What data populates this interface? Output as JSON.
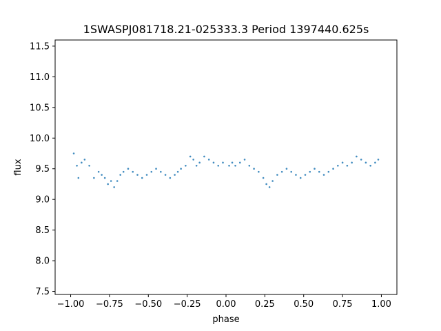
{
  "chart_data": {
    "type": "scatter",
    "title": "1SWASPJ081718.21-025333.3 Period 1397440.625s",
    "xlabel": "phase",
    "ylabel": "flux",
    "xlim": [
      -1.1,
      1.1
    ],
    "ylim": [
      7.45,
      11.6
    ],
    "xticks": [
      -1.0,
      -0.75,
      -0.5,
      -0.25,
      0.0,
      0.25,
      0.5,
      0.75,
      1.0
    ],
    "xtick_labels": [
      "−1.00",
      "−0.75",
      "−0.50",
      "−0.25",
      "0.00",
      "0.25",
      "0.50",
      "0.75",
      "1.00"
    ],
    "yticks": [
      7.5,
      8.0,
      8.5,
      9.0,
      9.5,
      10.0,
      10.5,
      11.0,
      11.5
    ],
    "ytick_labels": [
      "7.5",
      "8.0",
      "8.5",
      "9.0",
      "9.5",
      "10.0",
      "10.5",
      "11.0",
      "11.5"
    ],
    "grid": false,
    "legend": "none",
    "marker_color": "#1f77b4",
    "series": [
      {
        "x": [
          -0.98,
          -0.96,
          -0.95,
          -0.93,
          -0.91,
          -0.88,
          -0.85,
          -0.82,
          -0.8,
          -0.78,
          -0.76,
          -0.74,
          -0.72,
          -0.7,
          -0.68,
          -0.66,
          -0.63,
          -0.6,
          -0.57,
          -0.54,
          -0.51,
          -0.48,
          -0.45,
          -0.42,
          -0.39,
          -0.36,
          -0.33,
          -0.31,
          -0.29,
          -0.26,
          -0.23,
          -0.21,
          -0.19,
          -0.17,
          -0.14,
          -0.11,
          -0.08,
          -0.05,
          -0.02,
          0.02,
          0.04,
          0.06,
          0.09,
          0.12,
          0.15,
          0.18,
          0.21,
          0.24,
          0.26,
          0.28,
          0.3,
          0.33,
          0.36,
          0.39,
          0.42,
          0.45,
          0.48,
          0.51,
          0.54,
          0.57,
          0.6,
          0.63,
          0.66,
          0.69,
          0.72,
          0.75,
          0.78,
          0.81,
          0.84,
          0.87,
          0.9,
          0.93,
          0.96,
          0.98
        ],
        "y": [
          9.75,
          9.55,
          9.35,
          9.6,
          9.65,
          9.55,
          9.35,
          9.45,
          9.4,
          9.35,
          9.25,
          9.3,
          9.2,
          9.3,
          9.4,
          9.45,
          9.5,
          9.45,
          9.4,
          9.35,
          9.4,
          9.45,
          9.5,
          9.45,
          9.4,
          9.35,
          9.4,
          9.45,
          9.5,
          9.55,
          9.7,
          9.65,
          9.55,
          9.6,
          9.7,
          9.65,
          9.6,
          9.55,
          9.6,
          9.55,
          9.6,
          9.55,
          9.6,
          9.65,
          9.55,
          9.5,
          9.45,
          9.35,
          9.25,
          9.2,
          9.3,
          9.4,
          9.45,
          9.5,
          9.45,
          9.4,
          9.35,
          9.4,
          9.45,
          9.5,
          9.45,
          9.4,
          9.45,
          9.5,
          9.55,
          9.6,
          9.55,
          9.6,
          9.7,
          9.65,
          9.6,
          9.55,
          9.6,
          9.65
        ]
      }
    ]
  }
}
